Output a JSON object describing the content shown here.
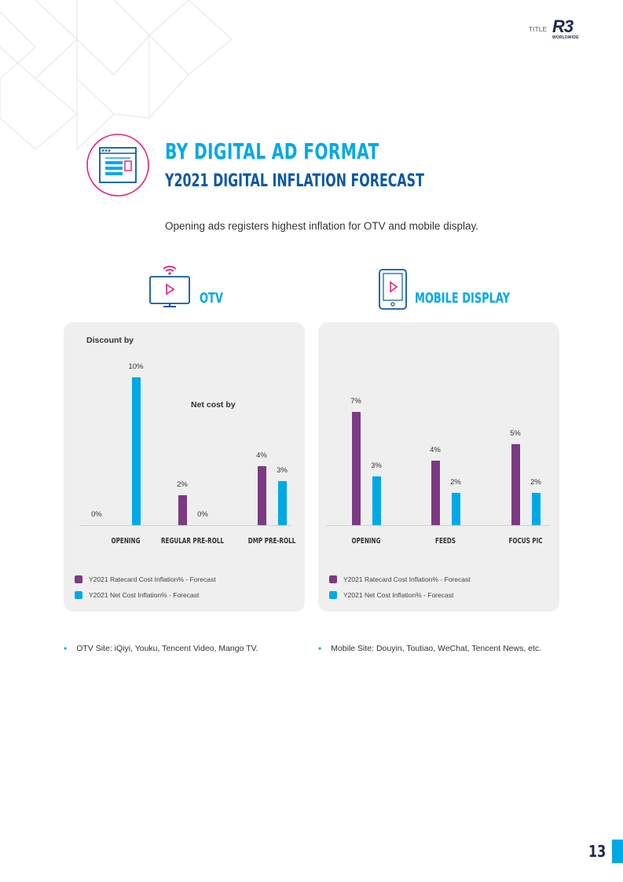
{
  "header": {
    "title_label": "TITLE",
    "logo_text": "R3",
    "logo_sub": "WORLDWIDE"
  },
  "heading": {
    "main": "BY DIGITAL AD FORMAT",
    "sub": "Y2021 DIGITAL INFLATION FORECAST"
  },
  "intro": "Opening ads registers highest inflation for OTV and mobile display.",
  "icons": {
    "section": "browser-window-icon",
    "otv": "tv-play-icon",
    "mobile": "mobile-play-icon"
  },
  "colors": {
    "ratecard": "#7b3a82",
    "netcost": "#00a9e6",
    "accent_magenta": "#e6197e",
    "heading_blue": "#00a9e6",
    "subheading_blue": "#0a59a6"
  },
  "otv": {
    "label": "OTV",
    "panel_notes": [
      "Discount by",
      "Net cost by"
    ],
    "bullet": "OTV Site: iQiyi, Youku, Tencent Video, Mango TV."
  },
  "mobile": {
    "label": "MOBILE DISPLAY",
    "bullet": "Mobile Site: Douyin, Toutiao, WeChat, Tencent News, etc."
  },
  "chart_data": [
    {
      "type": "bar",
      "title": "OTV",
      "categories": [
        "OPENING",
        "REGULAR PRE-ROLL",
        "DMP PRE-ROLL"
      ],
      "series": [
        {
          "name": "Y2021 Ratecard Cost Inflation% - Forecast",
          "values": [
            0,
            2,
            4
          ]
        },
        {
          "name": "Y2021 Net Cost Inflation% - Forecast",
          "values": [
            10,
            0,
            3
          ]
        }
      ],
      "value_labels": [
        [
          "0%",
          "2%",
          "4%"
        ],
        [
          "10%",
          "0%",
          "3%"
        ]
      ],
      "ylim": [
        0,
        11
      ],
      "legend": "bottom-left"
    },
    {
      "type": "bar",
      "title": "MOBILE DISPLAY",
      "categories": [
        "OPENING",
        "FEEDS",
        "FOCUS PIC"
      ],
      "series": [
        {
          "name": "Y2021 Ratecard Cost Inflation% - Forecast",
          "values": [
            7,
            4,
            5
          ]
        },
        {
          "name": "Y2021 Net Cost Inflation% - Forecast",
          "values": [
            3,
            2,
            2
          ]
        }
      ],
      "value_labels": [
        [
          "7%",
          "4%",
          "5%"
        ],
        [
          "3%",
          "2%",
          "2%"
        ]
      ],
      "ylim": [
        0,
        7.3
      ],
      "legend": "bottom-left"
    }
  ],
  "page_number": "13"
}
